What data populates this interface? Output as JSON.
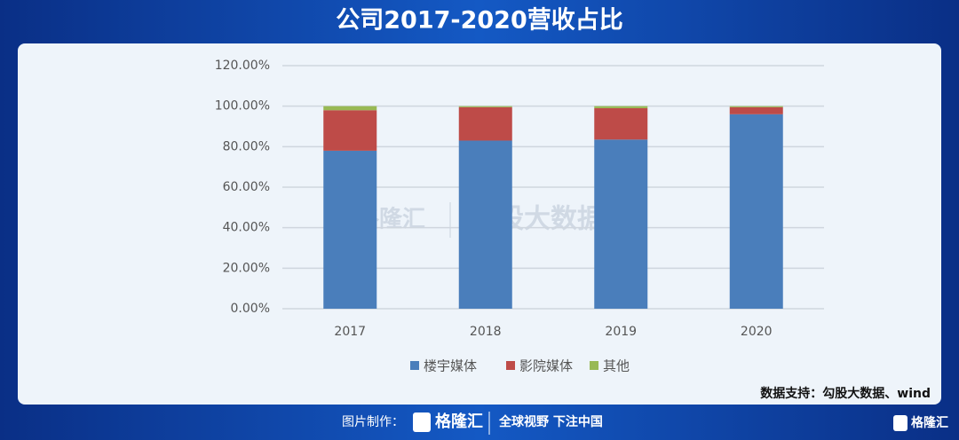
{
  "chart_data": {
    "type": "stacked_bar",
    "title": "公司2017-2020营收占比",
    "categories": [
      "2017",
      "2018",
      "2019",
      "2020"
    ],
    "series": [
      {
        "name": "楼宇媒体",
        "color": "#4a7ebb",
        "values": [
          78,
          83,
          83.5,
          96
        ]
      },
      {
        "name": "影院媒体",
        "color": "#be4b48",
        "values": [
          20,
          16.5,
          15.5,
          3.5
        ]
      },
      {
        "name": "其他",
        "color": "#98b954",
        "values": [
          2,
          0.5,
          1,
          0.5
        ]
      }
    ],
    "ylim": [
      0,
      120
    ],
    "yticks": [
      {
        "value": 0,
        "label": "0.00%"
      },
      {
        "value": 20,
        "label": "20.00%"
      },
      {
        "value": 40,
        "label": "40.00%"
      },
      {
        "value": 60,
        "label": "60.00%"
      },
      {
        "value": 80,
        "label": "80.00%"
      },
      {
        "value": 100,
        "label": "100.00%"
      },
      {
        "value": 120,
        "label": "120.00%"
      }
    ],
    "grid": true,
    "legend": "bottom",
    "source": "数据支持：勾股大数据、wind",
    "watermark": [
      "格隆汇",
      "勾股大数据"
    ]
  },
  "footer": {
    "made_by": "图片制作：",
    "brand": "格隆汇",
    "slogan": "全球视野 下注中国",
    "corner_brand": "格隆汇"
  }
}
